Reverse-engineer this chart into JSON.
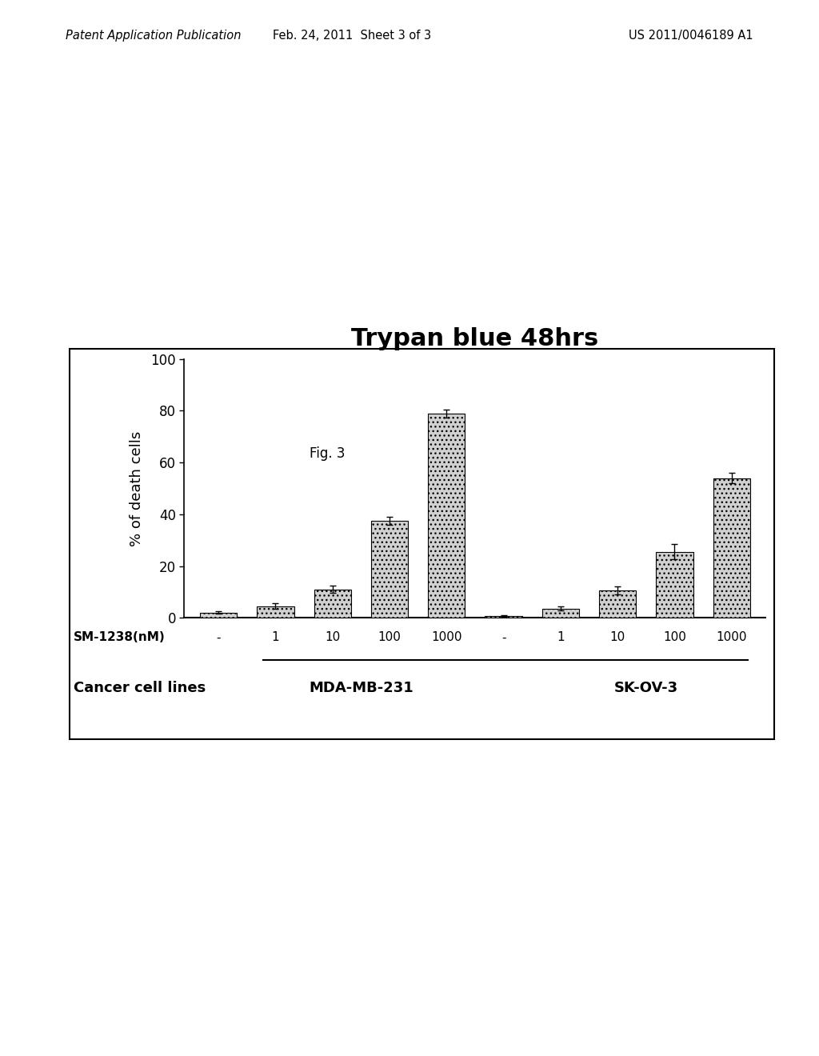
{
  "title": "Trypan blue 48hrs",
  "ylabel": "% of death cells",
  "sm_label": "SM-1238(nM)",
  "cancer_label": "Cancer cell lines",
  "cell_line1": "MDA-MB-231",
  "cell_line2": "SK-OV-3",
  "x_tick_labels": [
    "-",
    "1",
    "10",
    "100",
    "1000",
    "-",
    "1",
    "10",
    "100",
    "1000"
  ],
  "bar_values": [
    2.0,
    4.5,
    11.0,
    37.5,
    79.0,
    0.8,
    3.5,
    10.5,
    25.5,
    54.0
  ],
  "bar_errors": [
    0.5,
    1.0,
    1.5,
    1.5,
    1.5,
    0.3,
    0.8,
    1.5,
    3.0,
    2.0
  ],
  "bar_color": "#d0d0d0",
  "bar_hatch": "...",
  "bar_edgecolor": "#000000",
  "ylim": [
    0,
    100
  ],
  "yticks": [
    0,
    20,
    40,
    60,
    80,
    100
  ],
  "fig_caption": "Fig. 3",
  "header_left": "Patent Application Publication",
  "header_center": "Feb. 24, 2011  Sheet 3 of 3",
  "header_right": "US 2011/0046189 A1",
  "background_color": "#ffffff"
}
